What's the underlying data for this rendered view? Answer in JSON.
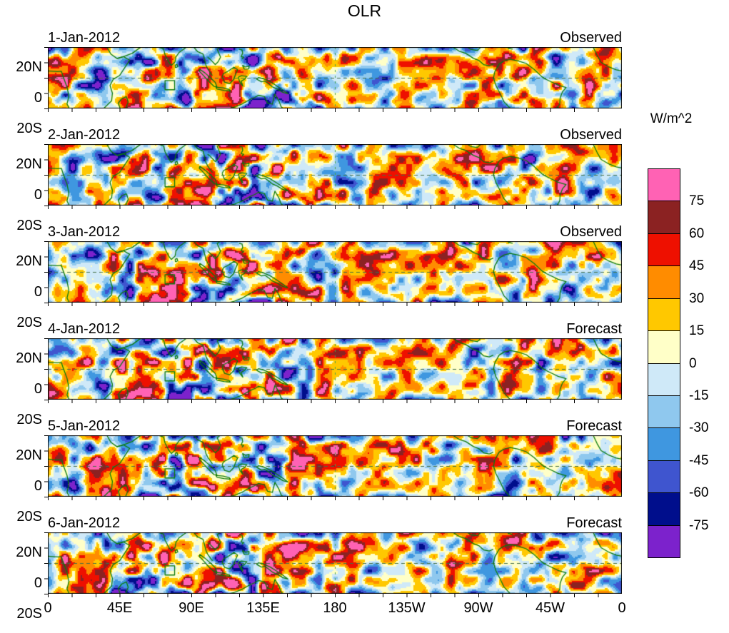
{
  "title": "OLR",
  "y_ticks": [
    "20N",
    "0",
    "20S"
  ],
  "x_ticks": [
    "0",
    "45E",
    "90E",
    "135E",
    "180",
    "135W",
    "90W",
    "45W",
    "0"
  ],
  "panels": [
    {
      "date": "1-Jan-2012",
      "source": "Observed"
    },
    {
      "date": "2-Jan-2012",
      "source": "Observed"
    },
    {
      "date": "3-Jan-2012",
      "source": "Observed"
    },
    {
      "date": "4-Jan-2012",
      "source": "Forecast"
    },
    {
      "date": "5-Jan-2012",
      "source": "Forecast"
    },
    {
      "date": "6-Jan-2012",
      "source": "Forecast"
    }
  ],
  "colorbar": {
    "unit_label": "W/m^2",
    "tick_labels": [
      "75",
      "60",
      "45",
      "30",
      "15",
      "0",
      "-15",
      "-30",
      "-45",
      "-60",
      "-75"
    ],
    "colors": [
      "#ff62b4",
      "#8b2222",
      "#ee1000",
      "#ff8c00",
      "#ffc800",
      "#ffffc8",
      "#cfe9f8",
      "#8fc8ee",
      "#3f97e0",
      "#3f55cf",
      "#000e8c",
      "#7c22cc"
    ]
  },
  "chart_data": {
    "type": "heatmap",
    "title": "OLR",
    "units": "W/m^2",
    "x_axis": {
      "quantity": "longitude",
      "range_deg": [
        0,
        360
      ],
      "tick_labels": [
        "0",
        "45E",
        "90E",
        "135E",
        "180",
        "135W",
        "90W",
        "45W",
        "0"
      ]
    },
    "y_axis": {
      "quantity": "latitude",
      "range_deg": [
        -20,
        20
      ],
      "tick_labels": [
        "20S",
        "0",
        "20N"
      ]
    },
    "contour_levels": [
      -75,
      -60,
      -45,
      -30,
      -15,
      0,
      15,
      30,
      45,
      60,
      75
    ],
    "palette_high_to_low": [
      "#ff62b4",
      "#8b2222",
      "#ee1000",
      "#ff8c00",
      "#ffc800",
      "#ffffc8",
      "#cfe9f8",
      "#8fc8ee",
      "#3f97e0",
      "#3f55cf",
      "#000e8c",
      "#7c22cc"
    ],
    "panels": [
      {
        "date": "1-Jan-2012",
        "kind": "Observed"
      },
      {
        "date": "2-Jan-2012",
        "kind": "Observed"
      },
      {
        "date": "3-Jan-2012",
        "kind": "Observed"
      },
      {
        "date": "4-Jan-2012",
        "kind": "Forecast"
      },
      {
        "date": "5-Jan-2012",
        "kind": "Forecast"
      },
      {
        "date": "6-Jan-2012",
        "kind": "Forecast"
      }
    ]
  }
}
